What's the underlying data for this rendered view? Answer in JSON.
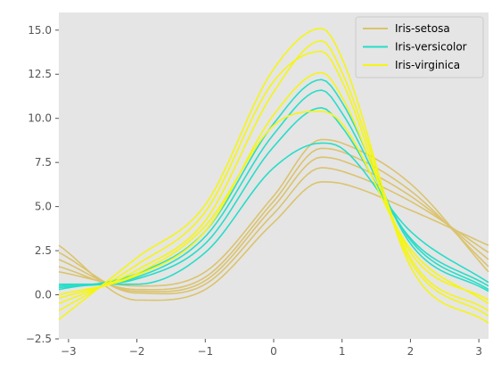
{
  "chart_data": {
    "type": "line",
    "subtype": "andrews_curves",
    "title": "",
    "xlabel": "",
    "ylabel": "",
    "xlim": [
      -3.14159,
      3.14159
    ],
    "ylim": [
      -2.5,
      16
    ],
    "grid": false,
    "background": "#e5e5e5",
    "legend_position": "top-right",
    "x_ticks": [
      {
        "value": -3,
        "label": "−3"
      },
      {
        "value": -2,
        "label": "−2"
      },
      {
        "value": -1,
        "label": "−1"
      },
      {
        "value": 0,
        "label": "0"
      },
      {
        "value": 1,
        "label": "1"
      },
      {
        "value": 2,
        "label": "2"
      },
      {
        "value": 3,
        "label": "3"
      }
    ],
    "y_ticks": [
      {
        "value": -2.5,
        "label": "−2.5"
      },
      {
        "value": 0,
        "label": "0.0"
      },
      {
        "value": 2.5,
        "label": "2.5"
      },
      {
        "value": 5,
        "label": "5.0"
      },
      {
        "value": 7.5,
        "label": "7.5"
      },
      {
        "value": 10,
        "label": "10.0"
      },
      {
        "value": 12.5,
        "label": "12.5"
      },
      {
        "value": 15,
        "label": "15.0"
      }
    ],
    "series": [
      {
        "name": "Iris-setosa",
        "color": "#dbc36e",
        "curves": [
          {
            "x": [
              -3.14,
              -2,
              -1,
              0,
              0.7,
              1,
              2,
              3.14
            ],
            "y": [
              2.4,
              0.1,
              0.6,
              4.6,
              7.2,
              7.0,
              5.3,
              2.4
            ]
          },
          {
            "x": [
              -3.14,
              -2,
              -1,
              0,
              0.7,
              1,
              2,
              3.14
            ],
            "y": [
              2.0,
              0.2,
              0.8,
              5.0,
              7.8,
              7.6,
              5.6,
              2.0
            ]
          },
          {
            "x": [
              -3.14,
              -2,
              -1,
              0,
              0.7,
              1,
              2,
              3.14
            ],
            "y": [
              1.6,
              0.3,
              1.0,
              5.3,
              8.3,
              8.1,
              5.9,
              1.6
            ]
          },
          {
            "x": [
              -3.14,
              -2,
              -1,
              0,
              0.7,
              1,
              2,
              3.14
            ],
            "y": [
              2.8,
              -0.3,
              0.3,
              4.1,
              6.4,
              6.3,
              4.8,
              2.8
            ]
          },
          {
            "x": [
              -3.14,
              -2,
              -1,
              0,
              0.7,
              1,
              2,
              3.14
            ],
            "y": [
              1.3,
              0.5,
              1.3,
              5.6,
              8.8,
              8.6,
              6.3,
              1.3
            ]
          }
        ]
      },
      {
        "name": "Iris-versicolor",
        "color": "#27ddc8",
        "curves": [
          {
            "x": [
              -3.14,
              -2,
              -1,
              0,
              0.7,
              1,
              2,
              3.14
            ],
            "y": [
              0.5,
              0.9,
              2.9,
              8.4,
              10.6,
              9.5,
              3.2,
              0.5
            ]
          },
          {
            "x": [
              -3.14,
              -2,
              -1,
              0,
              0.7,
              1,
              2,
              3.14
            ],
            "y": [
              0.4,
              1.0,
              3.3,
              9.1,
              11.6,
              10.3,
              3.1,
              0.3
            ]
          },
          {
            "x": [
              -3.14,
              -2,
              -1,
              0,
              0.7,
              1,
              2,
              3.14
            ],
            "y": [
              0.6,
              0.6,
              2.4,
              7.2,
              8.6,
              8.3,
              3.6,
              0.7
            ]
          },
          {
            "x": [
              -3.14,
              -2,
              -1,
              0,
              0.7,
              1,
              2,
              3.14
            ],
            "y": [
              0.3,
              1.2,
              3.6,
              9.7,
              12.2,
              10.9,
              2.9,
              0.2
            ]
          }
        ]
      },
      {
        "name": "Iris-virginica",
        "color": "#f5f515",
        "curves": [
          {
            "x": [
              -3.14,
              -2,
              -1,
              0,
              0.7,
              1,
              2,
              3.14
            ],
            "y": [
              -0.5,
              1.4,
              4.2,
              11.5,
              14.4,
              12.6,
              2.1,
              -0.9
            ]
          },
          {
            "x": [
              -3.14,
              -2,
              -1,
              0,
              0.7,
              1,
              2,
              3.14
            ],
            "y": [
              -1.4,
              2.1,
              5.1,
              12.8,
              15.1,
              13.4,
              1.6,
              -1.6
            ]
          },
          {
            "x": [
              -3.14,
              -2,
              -1,
              0,
              0.7,
              1,
              2,
              3.14
            ],
            "y": [
              0.0,
              1.1,
              3.6,
              10.2,
              12.6,
              11.2,
              2.4,
              -0.3
            ]
          },
          {
            "x": [
              -3.14,
              -2,
              -1,
              0,
              0.7,
              1,
              2,
              3.14
            ],
            "y": [
              -0.9,
              1.7,
              4.7,
              12.1,
              13.8,
              12.1,
              1.9,
              -1.2
            ]
          },
          {
            "x": [
              -3.14,
              -2,
              -1,
              0,
              0.7,
              1,
              2,
              3.14
            ],
            "y": [
              -0.2,
              1.2,
              3.9,
              9.6,
              10.4,
              9.7,
              2.6,
              -0.5
            ]
          }
        ]
      }
    ]
  }
}
